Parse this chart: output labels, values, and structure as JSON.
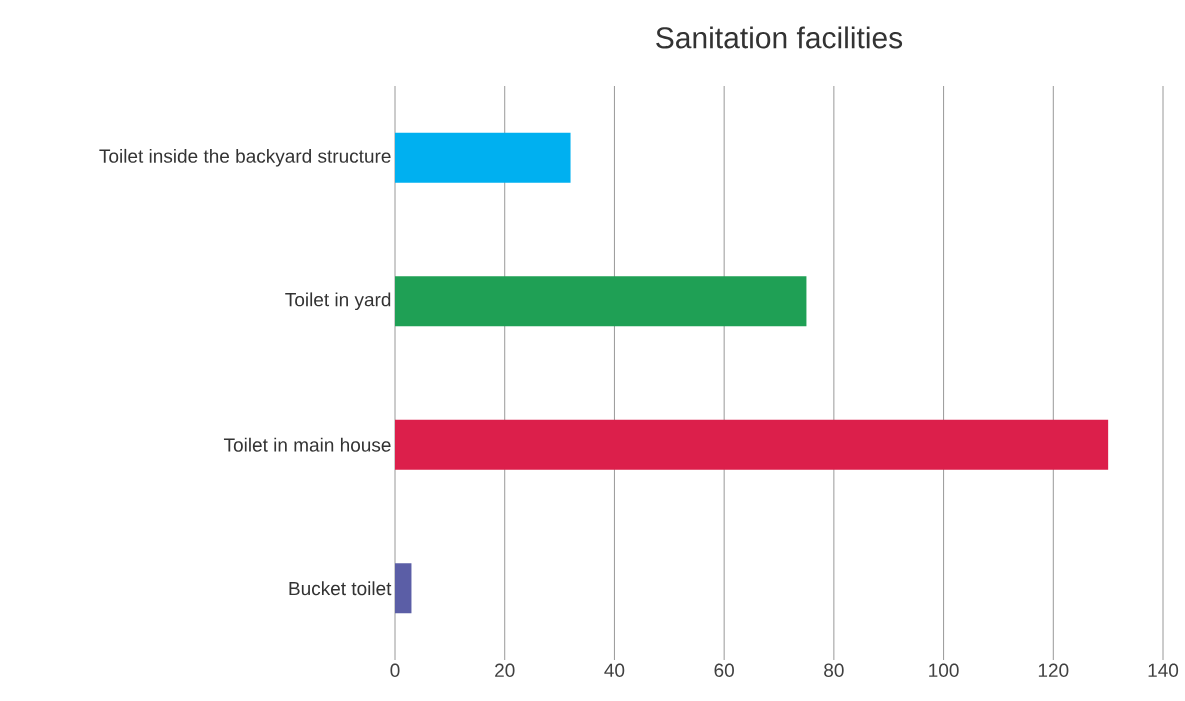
{
  "chart_data": {
    "type": "bar",
    "orientation": "horizontal",
    "title": "Sanitation facilities",
    "categories": [
      "Toilet inside the backyard structure",
      "Toilet in yard",
      "Toilet in main house",
      "Bucket toilet"
    ],
    "values": [
      32,
      75,
      130,
      3
    ],
    "colors": [
      "#00b0f0",
      "#1fa055",
      "#dc1f4b",
      "#5b5ea6"
    ],
    "xlim": [
      0,
      140
    ],
    "xticks": [
      0,
      20,
      40,
      60,
      80,
      100,
      120,
      140
    ],
    "grid": "x"
  }
}
